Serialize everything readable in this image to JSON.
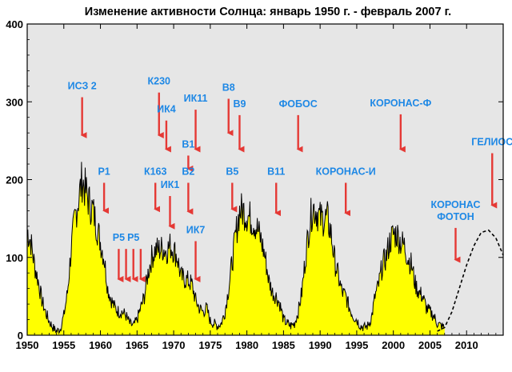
{
  "chart_data": {
    "type": "area",
    "title": "Изменение активности Солнца: январь 1950 г. - февраль 2007 г.",
    "xlabel": "",
    "ylabel": "",
    "xlim": [
      1950,
      2015
    ],
    "ylim": [
      0,
      400
    ],
    "x_ticks": [
      1950,
      1955,
      1960,
      1965,
      1970,
      1975,
      1980,
      1985,
      1990,
      1995,
      2000,
      2005,
      2010
    ],
    "y_ticks": [
      0,
      100,
      200,
      300,
      400
    ],
    "grid": false,
    "colors": {
      "fill": "#ffff00",
      "line": "#000000",
      "annotation": "#1e88e5",
      "background": "#e6e6e6"
    },
    "series": [
      {
        "style": "filled-area",
        "x": [
          1950,
          1950.5,
          1951,
          1951.5,
          1952,
          1952.5,
          1953,
          1953.5,
          1954,
          1954.5,
          1955,
          1955.5,
          1956,
          1956.5,
          1957,
          1957.5,
          1958,
          1958.5,
          1959,
          1959.5,
          1960,
          1960.5,
          1961,
          1961.5,
          1962,
          1962.5,
          1963,
          1963.5,
          1964,
          1964.5,
          1965,
          1965.5,
          1966,
          1966.5,
          1967,
          1967.5,
          1968,
          1968.5,
          1969,
          1969.5,
          1970,
          1970.5,
          1971,
          1971.5,
          1972,
          1972.5,
          1973,
          1973.5,
          1974,
          1974.5,
          1975,
          1975.5,
          1976,
          1976.5,
          1977,
          1977.5,
          1978,
          1978.5,
          1979,
          1979.5,
          1980,
          1980.5,
          1981,
          1981.5,
          1982,
          1982.5,
          1983,
          1983.5,
          1984,
          1984.5,
          1985,
          1985.5,
          1986,
          1986.5,
          1987,
          1987.5,
          1988,
          1988.5,
          1989,
          1989.5,
          1990,
          1990.5,
          1991,
          1991.5,
          1992,
          1992.5,
          1993,
          1993.5,
          1994,
          1994.5,
          1995,
          1995.5,
          1996,
          1996.5,
          1997,
          1997.5,
          1998,
          1998.5,
          1999,
          1999.5,
          2000,
          2000.5,
          2001,
          2001.5,
          2002,
          2002.5,
          2003,
          2003.5,
          2004,
          2004.5,
          2005,
          2005.5,
          2006,
          2006.5,
          2007
        ],
        "values": [
          135,
          120,
          90,
          70,
          45,
          30,
          18,
          10,
          5,
          8,
          25,
          55,
          110,
          150,
          175,
          200,
          185,
          170,
          160,
          140,
          120,
          100,
          60,
          45,
          35,
          30,
          30,
          25,
          15,
          12,
          20,
          35,
          50,
          80,
          100,
          110,
          110,
          112,
          108,
          115,
          110,
          100,
          75,
          72,
          70,
          65,
          45,
          35,
          30,
          35,
          18,
          15,
          12,
          15,
          30,
          60,
          95,
          130,
          160,
          160,
          155,
          150,
          145,
          135,
          120,
          100,
          70,
          55,
          50,
          40,
          20,
          15,
          12,
          15,
          30,
          55,
          100,
          140,
          165,
          160,
          150,
          150,
          150,
          130,
          95,
          75,
          55,
          50,
          35,
          25,
          20,
          12,
          10,
          12,
          22,
          50,
          65,
          90,
          100,
          120,
          130,
          130,
          120,
          115,
          100,
          90,
          65,
          55,
          50,
          35,
          30,
          25,
          15,
          12,
          10
        ]
      },
      {
        "style": "dashed-forecast",
        "x": [
          2006,
          2007,
          2008,
          2009,
          2010,
          2011,
          2012,
          2013,
          2014,
          2015
        ],
        "values": [
          5,
          10,
          30,
          60,
          90,
          115,
          132,
          135,
          125,
          103
        ]
      }
    ],
    "annotations": [
      {
        "label": "ИСЗ 2",
        "x": 1957.5,
        "y_top": 310,
        "y_tip": 255
      },
      {
        "label": "Р1",
        "x": 1960.5,
        "y_top": 200,
        "y_tip": 158
      },
      {
        "label": "Р5",
        "x": 1962.5,
        "y_top": 115,
        "y_tip": 70
      },
      {
        "label": "",
        "x": 1963.5,
        "y_top": 115,
        "y_tip": 70
      },
      {
        "label": "Р5",
        "x": 1964.5,
        "y_top": 115,
        "y_tip": 70
      },
      {
        "label": "",
        "x": 1965.5,
        "y_top": 115,
        "y_tip": 70
      },
      {
        "label": "К230",
        "x": 1968,
        "y_top": 316,
        "y_tip": 255
      },
      {
        "label": "ИК4",
        "x": 1969,
        "y_top": 280,
        "y_tip": 237
      },
      {
        "label": "В1",
        "x": 1972,
        "y_top": 235,
        "y_tip": 212
      },
      {
        "label": "К163",
        "x": 1967.5,
        "y_top": 200,
        "y_tip": 160
      },
      {
        "label": "В2",
        "x": 1972,
        "y_top": 200,
        "y_tip": 157
      },
      {
        "label": "ИК1",
        "x": 1969.5,
        "y_top": 183,
        "y_tip": 138
      },
      {
        "label": "ИК11",
        "x": 1973,
        "y_top": 294,
        "y_tip": 237
      },
      {
        "label": "ИК7",
        "x": 1973,
        "y_top": 125,
        "y_tip": 70
      },
      {
        "label": "В8",
        "x": 1977.5,
        "y_top": 308,
        "y_tip": 258
      },
      {
        "label": "В9",
        "x": 1979,
        "y_top": 287,
        "y_tip": 237
      },
      {
        "label": "В5",
        "x": 1978,
        "y_top": 200,
        "y_tip": 160
      },
      {
        "label": "ФОБОС",
        "x": 1987,
        "y_top": 287,
        "y_tip": 237
      },
      {
        "label": "В11",
        "x": 1984,
        "y_top": 200,
        "y_tip": 155
      },
      {
        "label": "КОРОНАС-И",
        "x": 1993.5,
        "y_top": 200,
        "y_tip": 155
      },
      {
        "label": "КОРОНАС-Ф",
        "x": 2001,
        "y_top": 288,
        "y_tip": 237
      },
      {
        "label": "КОРОНАС ФОТОН",
        "x": 2008.5,
        "y_top": 142,
        "y_tip": 95
      },
      {
        "label": "ГЕЛИОС",
        "x": 2013.5,
        "y_top": 238,
        "y_tip": 165
      }
    ]
  }
}
